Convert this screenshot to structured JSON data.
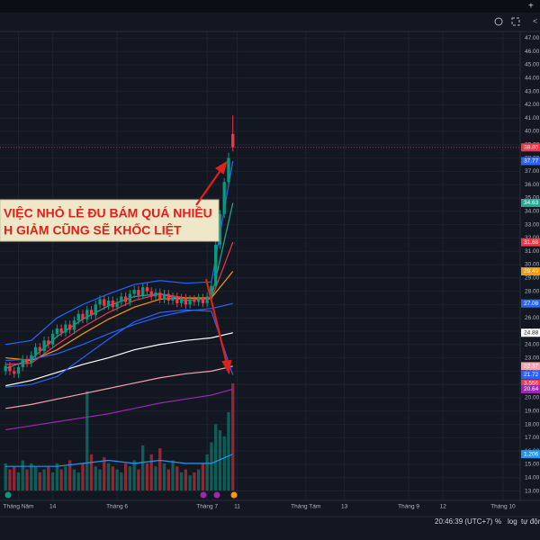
{
  "chart_data": {
    "type": "candlestick",
    "xlim": [
      -1.3,
      120
    ],
    "xticks": [
      {
        "value": 3,
        "label": "Tháng Năm"
      },
      {
        "value": 11,
        "label": "14"
      },
      {
        "value": 26,
        "label": "Tháng 6"
      },
      {
        "value": 47,
        "label": "Tháng 7"
      },
      {
        "value": 54,
        "label": "11"
      },
      {
        "value": 70,
        "label": "Tháng Tám"
      },
      {
        "value": 79,
        "label": "13"
      },
      {
        "value": 94,
        "label": "Tháng 9"
      },
      {
        "value": 102,
        "label": "12"
      },
      {
        "value": 116,
        "label": "Tháng 10"
      }
    ],
    "ylim": [
      12.7,
      47.5
    ],
    "yticks": [
      {
        "value": 13,
        "label": "13.00"
      },
      {
        "value": 14,
        "label": "14.00"
      },
      {
        "value": 15,
        "label": "15.00"
      },
      {
        "value": 16,
        "label": "16.00"
      },
      {
        "value": 17,
        "label": "17.00"
      },
      {
        "value": 18,
        "label": "18.00"
      },
      {
        "value": 19,
        "label": "19.00"
      },
      {
        "value": 20,
        "label": "20.00"
      },
      {
        "value": 21,
        "label": "21.00"
      },
      {
        "value": 22,
        "label": "22.00"
      },
      {
        "value": 23,
        "label": "23.00"
      },
      {
        "value": 24,
        "label": "24.00"
      },
      {
        "value": 25,
        "label": "25.00"
      },
      {
        "value": 26,
        "label": "26.00"
      },
      {
        "value": 27,
        "label": "27.00"
      },
      {
        "value": 28,
        "label": "28.00"
      },
      {
        "value": 29,
        "label": "29.00"
      },
      {
        "value": 30,
        "label": "30.00"
      },
      {
        "value": 31,
        "label": "31.00"
      },
      {
        "value": 32,
        "label": "32.00"
      },
      {
        "value": 33,
        "label": "33.00"
      },
      {
        "value": 34,
        "label": "34.00"
      },
      {
        "value": 35,
        "label": "35.00"
      },
      {
        "value": 36,
        "label": "36.00"
      },
      {
        "value": 37,
        "label": "37.00"
      },
      {
        "value": 38,
        "label": "38.00"
      },
      {
        "value": 39,
        "label": "39.00"
      },
      {
        "value": 40,
        "label": "40.00"
      },
      {
        "value": 41,
        "label": "41.00"
      },
      {
        "value": 42,
        "label": "42.00"
      },
      {
        "value": 43,
        "label": "43.00"
      },
      {
        "value": 44,
        "label": "44.00"
      },
      {
        "value": 45,
        "label": "45.00"
      },
      {
        "value": 46,
        "label": "46.00"
      },
      {
        "value": 47,
        "label": "47.00"
      }
    ],
    "y2lim": [
      0,
      4.33
    ],
    "grid": true,
    "up_color": "#089981",
    "down_color": "#f23645",
    "open": [
      22.0,
      22.4,
      22.0,
      21.8,
      22.3,
      22.9,
      22.6,
      23.2,
      23.8,
      23.5,
      24.3,
      24.0,
      24.8,
      25.2,
      24.9,
      25.5,
      25.1,
      25.8,
      26.3,
      25.9,
      26.6,
      26.2,
      27.0,
      27.4,
      26.9,
      27.3,
      26.8,
      27.2,
      27.6,
      27.2,
      27.8,
      28.1,
      27.7,
      28.3,
      28.0,
      27.6,
      27.9,
      27.4,
      27.8,
      27.3,
      27.6,
      27.1,
      27.5,
      27.0,
      27.4,
      27.2,
      27.5,
      27.1,
      27.6,
      28.4,
      31.5,
      33.8,
      36.2,
      39.8
    ],
    "high": [
      22.7,
      22.7,
      22.3,
      22.6,
      23.2,
      23.2,
      23.5,
      24.1,
      24.1,
      24.6,
      24.6,
      25.1,
      25.5,
      25.5,
      25.8,
      25.8,
      26.1,
      26.6,
      26.6,
      26.9,
      26.9,
      27.3,
      27.7,
      27.7,
      27.6,
      27.6,
      27.5,
      27.9,
      27.9,
      28.1,
      28.4,
      28.4,
      28.6,
      28.6,
      28.3,
      28.2,
      28.2,
      28.1,
      28.1,
      27.9,
      27.9,
      27.8,
      27.8,
      27.7,
      27.7,
      27.8,
      27.8,
      27.9,
      28.7,
      31.8,
      34.1,
      36.5,
      38.4,
      41.2
    ],
    "low": [
      21.7,
      21.7,
      21.5,
      21.5,
      22.0,
      22.3,
      22.3,
      22.9,
      23.2,
      23.2,
      23.7,
      23.7,
      24.5,
      24.6,
      24.6,
      24.8,
      24.8,
      25.5,
      25.6,
      25.6,
      25.9,
      25.9,
      26.7,
      26.6,
      26.6,
      26.5,
      26.5,
      26.9,
      26.9,
      26.9,
      27.5,
      27.4,
      27.4,
      27.7,
      27.3,
      27.3,
      27.1,
      27.1,
      27.0,
      27.0,
      26.8,
      26.8,
      26.7,
      26.7,
      26.9,
      26.9,
      26.8,
      26.8,
      27.3,
      28.2,
      31.2,
      33.5,
      35.9,
      38.5
    ],
    "close": [
      22.4,
      22.0,
      21.8,
      22.3,
      22.9,
      22.6,
      23.2,
      23.8,
      23.5,
      24.3,
      24.0,
      24.8,
      25.2,
      24.9,
      25.5,
      25.1,
      25.8,
      26.3,
      25.9,
      26.6,
      26.2,
      27.0,
      27.4,
      26.9,
      27.3,
      26.8,
      27.2,
      27.6,
      27.2,
      27.8,
      28.1,
      27.7,
      28.3,
      28.0,
      27.6,
      27.9,
      27.4,
      27.8,
      27.3,
      27.6,
      27.1,
      27.5,
      27.0,
      27.4,
      27.2,
      27.5,
      27.1,
      27.6,
      28.4,
      31.5,
      33.8,
      36.2,
      38.0,
      38.8
    ],
    "volume": [
      0.9,
      0.7,
      0.8,
      0.6,
      1.0,
      0.7,
      0.9,
      0.8,
      0.6,
      0.7,
      0.8,
      0.6,
      0.9,
      0.7,
      0.8,
      1.0,
      0.7,
      0.6,
      0.9,
      3.3,
      1.2,
      0.8,
      0.7,
      1.1,
      0.9,
      0.8,
      0.7,
      0.6,
      0.9,
      0.8,
      1.0,
      0.7,
      1.5,
      0.9,
      1.2,
      0.8,
      1.4,
      0.9,
      0.7,
      1.0,
      0.8,
      0.6,
      0.7,
      0.5,
      0.6,
      0.7,
      0.9,
      1.2,
      1.6,
      2.2,
      2.0,
      1.8,
      2.6,
      3.556
    ],
    "series": [
      {
        "color": "#2962ff",
        "x": [
          0,
          6,
          12,
          18,
          24,
          30,
          36,
          42,
          48,
          53
        ],
        "values": [
          24.0,
          24.3,
          26.0,
          27.0,
          27.8,
          28.5,
          28.8,
          28.6,
          28.7,
          37.77
        ]
      },
      {
        "color": "#22ab94",
        "x": [
          0,
          6,
          12,
          18,
          24,
          30,
          36,
          42,
          48,
          53
        ],
        "values": [
          22.2,
          22.9,
          24.6,
          25.9,
          26.9,
          27.6,
          27.8,
          27.3,
          27.5,
          34.63
        ]
      },
      {
        "color": "#f23645",
        "x": [
          0,
          6,
          12,
          18,
          24,
          30,
          36,
          42,
          48,
          53
        ],
        "values": [
          22.5,
          22.6,
          24.0,
          25.3,
          26.4,
          27.3,
          27.8,
          27.5,
          27.4,
          31.68
        ]
      },
      {
        "color": "#ff9800",
        "x": [
          0,
          6,
          12,
          18,
          24,
          30,
          36,
          42,
          48,
          53
        ],
        "values": [
          23.0,
          22.8,
          23.6,
          24.8,
          25.9,
          26.8,
          27.4,
          27.5,
          27.5,
          29.49
        ]
      },
      {
        "color": "#2962ff",
        "x": [
          0,
          6,
          12,
          18,
          24,
          30,
          36,
          42,
          48,
          53
        ],
        "values": [
          22.8,
          22.9,
          23.3,
          24.0,
          24.8,
          25.5,
          26.1,
          26.5,
          26.7,
          27.08
        ]
      },
      {
        "color": "#ffffff",
        "x": [
          0,
          6,
          12,
          18,
          24,
          30,
          36,
          42,
          48,
          53
        ],
        "values": [
          20.9,
          21.3,
          21.9,
          22.5,
          23.0,
          23.6,
          24.0,
          24.3,
          24.5,
          24.88
        ]
      },
      {
        "color": "#f7a1b0",
        "x": [
          0,
          6,
          12,
          18,
          24,
          30,
          36,
          42,
          48,
          53
        ],
        "values": [
          19.2,
          19.5,
          19.9,
          20.3,
          20.7,
          21.1,
          21.5,
          21.8,
          22.0,
          22.37
        ]
      },
      {
        "color": "#2962ff",
        "x": [
          0,
          6,
          12,
          18,
          24,
          30,
          36,
          42,
          48,
          53
        ],
        "values": [
          20.8,
          21.0,
          21.6,
          23.0,
          24.4,
          25.7,
          26.4,
          26.6,
          26.5,
          21.72
        ]
      },
      {
        "color": "#9c27b0",
        "x": [
          0,
          6,
          12,
          18,
          24,
          30,
          36,
          42,
          48,
          53
        ],
        "values": [
          17.6,
          17.9,
          18.2,
          18.5,
          18.8,
          19.2,
          19.6,
          19.9,
          20.2,
          20.64
        ]
      },
      {
        "color": "#2196f3",
        "axis": "y2",
        "x": [
          0,
          6,
          12,
          18,
          24,
          30,
          36,
          42,
          48,
          53
        ],
        "values": [
          0.8,
          0.8,
          0.8,
          0.9,
          1.0,
          0.9,
          1.0,
          0.9,
          0.9,
          1.206
        ]
      }
    ],
    "last_value_labels": [
      {
        "value": 38.8,
        "label": "38.80",
        "color": "#f23645"
      },
      {
        "value": 37.77,
        "label": "37.77",
        "color": "#2962ff"
      },
      {
        "value": 34.63,
        "label": "34.63",
        "color": "#22ab94"
      },
      {
        "value": 31.68,
        "label": "31.68",
        "color": "#f23645"
      },
      {
        "value": 29.49,
        "label": "29.49",
        "color": "#ff9800"
      },
      {
        "value": 27.08,
        "label": "27.08",
        "color": "#2962ff"
      },
      {
        "value": 24.88,
        "label": "24.88",
        "color": "#ffffff"
      },
      {
        "value": 22.37,
        "label": "22.37",
        "color": "#f7a1b0"
      },
      {
        "value": 21.72,
        "label": "21.72",
        "color": "#2962ff"
      },
      {
        "value": 3.556,
        "label": "3.556",
        "color": "#f23645",
        "axis": "y2"
      },
      {
        "value": 20.64,
        "label": "20.64",
        "color": "#9c27b0"
      },
      {
        "value": 1.206,
        "label": "1.206",
        "color": "#2196f3",
        "axis": "y2"
      }
    ],
    "annotation": {
      "lines": [
        "VIỆC NHỎ LẺ ĐU BÁM QUÁ NHIỀU",
        "H GIẢM CŨNG SẼ KHỐC LIỆT"
      ]
    }
  },
  "status_bar": {
    "time": "20:46:39 (UTC+7)",
    "percent": "%",
    "log": "log",
    "auto": "tự động"
  }
}
